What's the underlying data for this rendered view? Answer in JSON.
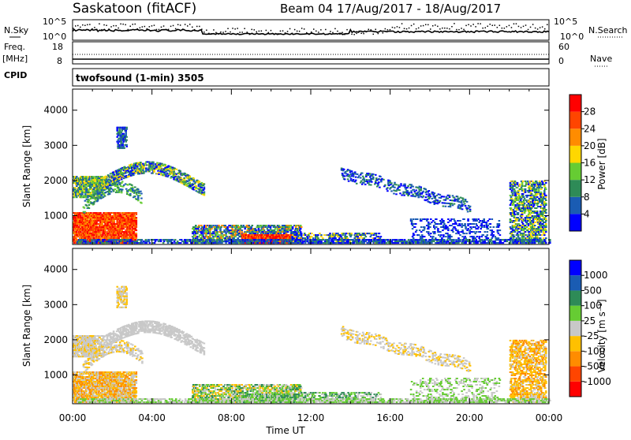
{
  "header": {
    "title": "Saskatoon (fitACF)",
    "subtitle": "Beam 04 17/Aug/2017 - 18/Aug/2017"
  },
  "top_panels": {
    "nsky_label": "N.Sky",
    "nsky_ticks": [
      "10^5",
      "10^0"
    ],
    "nsky_right_ticks": [
      "10^5",
      "10^0"
    ],
    "nsearch_label": "N.Search",
    "freq_label": "Freq.",
    "freq_unit": "[MHz]",
    "freq_ticks": [
      "18",
      "8"
    ],
    "nave_ticks": [
      "60",
      "0"
    ],
    "nave_label": "Nave",
    "cpid_label": "CPID",
    "cpid_text": "twofsound (1-min) 3505"
  },
  "chart_data": [
    {
      "type": "heatmap",
      "name": "power",
      "ylabel": "Slant Range [km]",
      "ylim": [
        180,
        4600
      ],
      "yticks": [
        1000,
        2000,
        3000,
        4000
      ],
      "xlim": [
        0,
        24
      ],
      "xticks": [
        "00:00",
        "04:00",
        "08:00",
        "12:00",
        "16:00",
        "20:00",
        "00:00"
      ],
      "colorbar": {
        "label": "Power [dB]",
        "tick_labels": [
          "28",
          "24",
          "20",
          "16",
          "12",
          "8",
          "4"
        ],
        "colors": [
          "#0000ff",
          "#1a5cb3",
          "#2e8b57",
          "#66cc33",
          "#ffd700",
          "#ff8c00",
          "#ff4500",
          "#ff0000"
        ]
      }
    },
    {
      "type": "heatmap",
      "name": "velocity",
      "ylabel": "Slant Range [km]",
      "ylim": [
        180,
        4600
      ],
      "yticks": [
        1000,
        2000,
        3000,
        4000
      ],
      "xlim": [
        0,
        24
      ],
      "xticks": [
        "00:00",
        "04:00",
        "08:00",
        "12:00",
        "16:00",
        "20:00",
        "00:00"
      ],
      "xlabel": "Time UT",
      "colorbar": {
        "label": "Velocity [m s⁻¹]",
        "tick_labels": [
          "1000",
          "500",
          "100",
          "25",
          "-25",
          "-100",
          "-500",
          "-1000"
        ],
        "colors": [
          "#ff0000",
          "#ff4500",
          "#ff8c00",
          "#ffc000",
          "#c8c8c8",
          "#66cc33",
          "#2e8b57",
          "#1a5cb3",
          "#0000ff"
        ]
      }
    }
  ]
}
